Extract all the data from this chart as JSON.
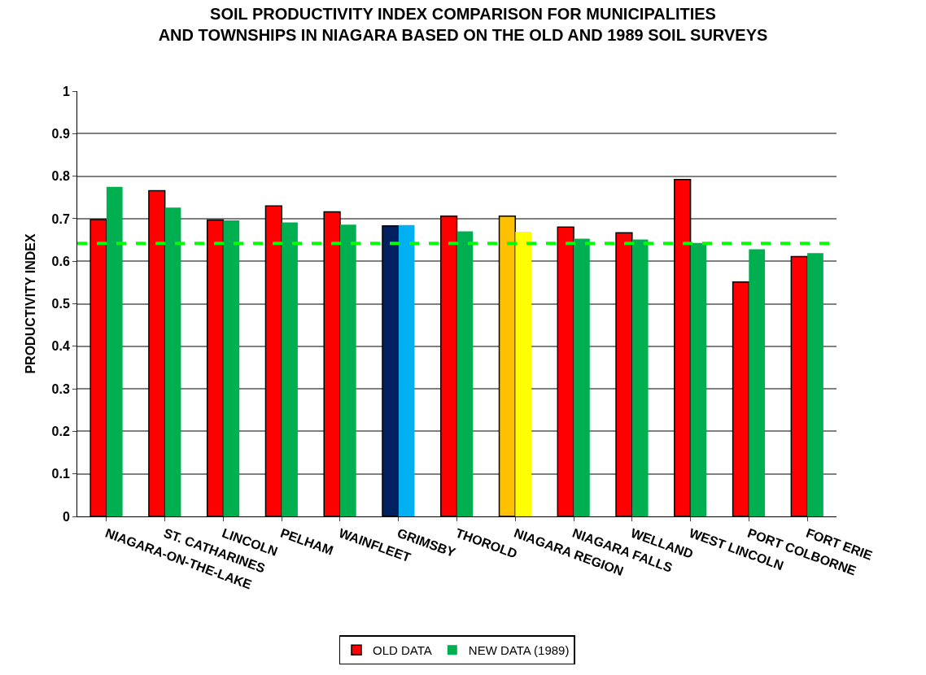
{
  "chart_data": {
    "type": "bar",
    "title": "SOIL PRODUCTIVITY INDEX COMPARISON FOR MUNICIPALITIES\nAND TOWNSHIPS IN NIAGARA BASED ON THE OLD AND 1989 SOIL SURVEYS",
    "ylabel": "PRODUCTIVITY INDEX",
    "categories": [
      "NIAGARA-ON-THE-LAKE",
      "ST. CATHARINES",
      "LINCOLN",
      "PELHAM",
      "WAINFLEET",
      "GRIMSBY",
      "THOROLD",
      "NIAGARA REGION",
      "NIAGARA FALLS",
      "WELLAND",
      "WEST LINCOLN",
      "PORT COLBORNE",
      "FORT ERIE"
    ],
    "series": [
      {
        "name": "OLD DATA",
        "colors": [
          "#ff0000",
          "#ff0000",
          "#ff0000",
          "#ff0000",
          "#ff0000",
          "#002060",
          "#ff0000",
          "#ffc000",
          "#ff0000",
          "#ff0000",
          "#ff0000",
          "#ff0000",
          "#ff0000"
        ],
        "values": [
          0.698,
          0.766,
          0.697,
          0.73,
          0.716,
          0.683,
          0.706,
          0.706,
          0.68,
          0.667,
          0.792,
          0.551,
          0.611
        ]
      },
      {
        "name": "NEW DATA (1989)",
        "colors": [
          "#00b050",
          "#00b050",
          "#00b050",
          "#00b050",
          "#00b050",
          "#00b0f0",
          "#00b050",
          "#ffff00",
          "#00b050",
          "#00b050",
          "#00b050",
          "#00b050",
          "#00b050"
        ],
        "values": [
          0.775,
          0.726,
          0.696,
          0.691,
          0.686,
          0.685,
          0.67,
          0.669,
          0.653,
          0.651,
          0.643,
          0.628,
          0.619
        ]
      }
    ],
    "ref_lines": [
      {
        "axis": "y",
        "value": 0.642,
        "color": "#00ff00",
        "line_style": "dashed"
      }
    ],
    "ylim": [
      0,
      1
    ],
    "yticks": [
      0,
      0.1,
      0.2,
      0.3,
      0.4,
      0.5,
      0.6,
      0.7,
      0.8,
      0.9,
      1
    ],
    "grid": "y",
    "legend": "bottom"
  }
}
